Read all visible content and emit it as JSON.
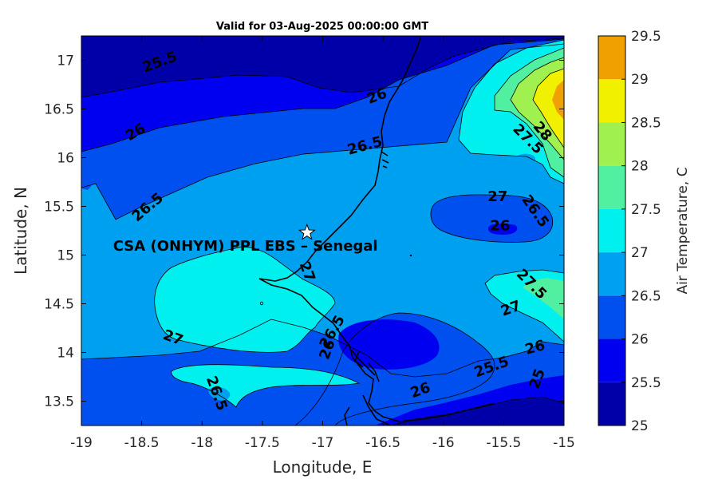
{
  "chart_data": {
    "type": "contour",
    "title": "Valid for 03-Aug-2025 00:00:00 GMT",
    "xlabel": "Longitude, E",
    "ylabel": "Latitude, N",
    "xlim": [
      -19,
      -15
    ],
    "ylim": [
      13.25,
      17.25
    ],
    "x_ticks": [
      -19,
      -18.5,
      -18,
      -17.5,
      -17,
      -16.5,
      -16,
      -15.5,
      -15
    ],
    "x_tick_labels": [
      "-19",
      "-18.5",
      "-18",
      "-17.5",
      "-17",
      "-16.5",
      "-16",
      "-15.5",
      "-15"
    ],
    "y_ticks": [
      13.5,
      14,
      14.5,
      15,
      15.5,
      16,
      16.5,
      17
    ],
    "y_tick_labels": [
      "13.5",
      "14",
      "14.5",
      "15",
      "15.5",
      "16",
      "16.5",
      "17"
    ],
    "colorbar": {
      "label": "Air Temperature, C",
      "levels": [
        25,
        25.5,
        26,
        26.5,
        27,
        27.5,
        28,
        28.5,
        29,
        29.5
      ],
      "tick_labels": [
        "25",
        "25.5",
        "26",
        "26.5",
        "27",
        "27.5",
        "28",
        "28.5",
        "29",
        "29.5"
      ],
      "colors": [
        "#0000A8",
        "#0000F0",
        "#0050F0",
        "#00A0F0",
        "#00F0F0",
        "#50F0A0",
        "#A0F050",
        "#F0F000",
        "#F0A000",
        "#F05000"
      ]
    },
    "contour_labels": [
      {
        "text": "25.5",
        "lon": -18.35,
        "lat": 16.98,
        "rot": -20
      },
      {
        "text": "26",
        "lon": -16.55,
        "lat": 16.63,
        "rot": -20
      },
      {
        "text": "26",
        "lon": -18.55,
        "lat": 16.26,
        "rot": -30
      },
      {
        "text": "26.5",
        "lon": -16.65,
        "lat": 16.12,
        "rot": -15
      },
      {
        "text": "26.5",
        "lon": -18.45,
        "lat": 15.49,
        "rot": -40
      },
      {
        "text": "27",
        "lon": -15.55,
        "lat": 15.6,
        "rot": 0
      },
      {
        "text": "27.5",
        "lon": -15.3,
        "lat": 16.19,
        "rot": 45
      },
      {
        "text": "28",
        "lon": -15.18,
        "lat": 16.27,
        "rot": 50
      },
      {
        "text": "26.5",
        "lon": -15.24,
        "lat": 15.45,
        "rot": 55
      },
      {
        "text": "26",
        "lon": -15.53,
        "lat": 15.3,
        "rot": 0
      },
      {
        "text": "27",
        "lon": -17.13,
        "lat": 14.83,
        "rot": 70
      },
      {
        "text": "27.5",
        "lon": -15.27,
        "lat": 14.7,
        "rot": 45
      },
      {
        "text": "27",
        "lon": -15.44,
        "lat": 14.45,
        "rot": -20
      },
      {
        "text": "26.5",
        "lon": -16.92,
        "lat": 14.21,
        "rot": -60
      },
      {
        "text": "26",
        "lon": -16.96,
        "lat": 14.03,
        "rot": -70
      },
      {
        "text": "27",
        "lon": -18.24,
        "lat": 14.15,
        "rot": 20
      },
      {
        "text": "26",
        "lon": -15.24,
        "lat": 14.05,
        "rot": -15
      },
      {
        "text": "25.5",
        "lon": -15.6,
        "lat": 13.85,
        "rot": -20
      },
      {
        "text": "25",
        "lon": -15.22,
        "lat": 13.73,
        "rot": -70
      },
      {
        "text": "26",
        "lon": -16.19,
        "lat": 13.61,
        "rot": -20
      },
      {
        "text": "26.5",
        "lon": -17.88,
        "lat": 13.58,
        "rot": 70
      }
    ],
    "station": {
      "label": "CSA (ONHYM) PPL EBS  – Senegal",
      "lon": -17.13,
      "lat": 15.23,
      "marker": "star"
    },
    "grid": false
  }
}
